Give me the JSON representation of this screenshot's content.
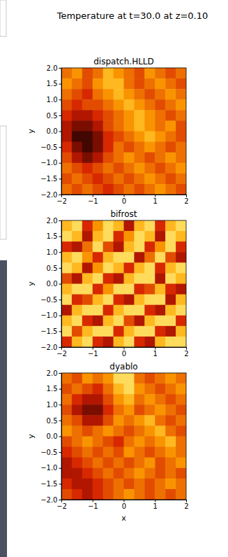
{
  "suptitle": "Temperature at t=30.0 at z=0.10",
  "chart_data": [
    {
      "type": "heatmap",
      "title": "dispatch.HLLD",
      "ylabel": "y",
      "xlim": [
        -2,
        2
      ],
      "ylim": [
        -2,
        2
      ],
      "xticks": [
        {
          "value": -2,
          "label": "−2"
        },
        {
          "value": -1,
          "label": "−1"
        },
        0,
        1,
        2
      ],
      "yticks": [
        {
          "value": -2,
          "label": "−2.0"
        },
        {
          "value": -1.5,
          "label": "−1.5"
        },
        {
          "value": -1,
          "label": "−1.0"
        },
        {
          "value": -0.5,
          "label": "−0.5"
        },
        {
          "value": 0,
          "label": "0.0"
        },
        {
          "value": 0.5,
          "label": "0.5"
        },
        {
          "value": 1,
          "label": "1.0"
        },
        {
          "value": 1.5,
          "label": "1.5"
        },
        {
          "value": 2,
          "label": "2.0"
        }
      ],
      "zlim": [
        0,
        1
      ],
      "cells": [
        [
          0.6,
          0.7,
          0.5,
          0.6,
          0.8,
          0.7,
          0.6,
          0.5,
          0.7,
          0.6,
          0.5,
          0.6
        ],
        [
          0.7,
          0.6,
          0.5,
          0.7,
          0.8,
          0.8,
          0.6,
          0.5,
          0.6,
          0.7,
          0.6,
          0.5
        ],
        [
          0.6,
          0.5,
          0.4,
          0.6,
          0.7,
          0.8,
          0.7,
          0.6,
          0.5,
          0.6,
          0.7,
          0.6
        ],
        [
          0.5,
          0.4,
          0.5,
          0.5,
          0.6,
          0.7,
          0.8,
          0.7,
          0.6,
          0.5,
          0.6,
          0.7
        ],
        [
          0.4,
          0.3,
          0.3,
          0.4,
          0.5,
          0.6,
          0.7,
          0.8,
          0.7,
          0.6,
          0.5,
          0.6
        ],
        [
          0.3,
          0.2,
          0.2,
          0.3,
          0.5,
          0.6,
          0.7,
          0.8,
          0.7,
          0.6,
          0.7,
          0.5
        ],
        [
          0.3,
          0.1,
          0.1,
          0.2,
          0.4,
          0.5,
          0.6,
          0.7,
          0.8,
          0.7,
          0.6,
          0.5
        ],
        [
          0.4,
          0.2,
          0.1,
          0.2,
          0.4,
          0.6,
          0.5,
          0.6,
          0.7,
          0.6,
          0.5,
          0.6
        ],
        [
          0.5,
          0.3,
          0.2,
          0.3,
          0.5,
          0.6,
          0.7,
          0.6,
          0.5,
          0.6,
          0.7,
          0.6
        ],
        [
          0.6,
          0.5,
          0.4,
          0.5,
          0.6,
          0.5,
          0.6,
          0.7,
          0.6,
          0.5,
          0.6,
          0.7
        ],
        [
          0.5,
          0.6,
          0.5,
          0.4,
          0.5,
          0.6,
          0.5,
          0.6,
          0.7,
          0.6,
          0.5,
          0.6
        ],
        [
          0.6,
          0.5,
          0.6,
          0.5,
          0.4,
          0.5,
          0.6,
          0.5,
          0.6,
          0.7,
          0.6,
          0.5
        ]
      ]
    },
    {
      "type": "heatmap",
      "title": "bifrost",
      "ylabel": "y",
      "xlim": [
        -2,
        2
      ],
      "ylim": [
        -2,
        2
      ],
      "xticks": [
        {
          "value": -2,
          "label": "−2"
        },
        {
          "value": -1,
          "label": "−1"
        },
        0,
        1,
        2
      ],
      "yticks": [
        {
          "value": -2,
          "label": "−2.0"
        },
        {
          "value": -1.5,
          "label": "−1.5"
        },
        {
          "value": -1,
          "label": "−1.0"
        },
        {
          "value": -0.5,
          "label": "−0.5"
        },
        {
          "value": 0,
          "label": "0.0"
        },
        {
          "value": 0.5,
          "label": "0.5"
        },
        {
          "value": 1,
          "label": "1.0"
        },
        {
          "value": 1.5,
          "label": "1.5"
        },
        {
          "value": 2,
          "label": "2.0"
        }
      ],
      "zlim": [
        0,
        1
      ],
      "cells": [
        [
          0.8,
          0.9,
          0.4,
          0.7,
          0.9,
          0.8,
          0.3,
          0.8,
          0.9,
          0.4,
          0.8,
          0.9
        ],
        [
          0.9,
          0.8,
          0.3,
          0.8,
          0.9,
          0.4,
          0.7,
          0.9,
          0.8,
          0.3,
          0.9,
          0.8
        ],
        [
          0.4,
          0.3,
          0.6,
          0.9,
          0.5,
          0.3,
          0.8,
          0.9,
          0.4,
          0.7,
          0.9,
          0.4
        ],
        [
          0.8,
          0.9,
          0.7,
          0.4,
          0.8,
          0.9,
          0.9,
          0.3,
          0.6,
          0.9,
          0.5,
          0.3
        ],
        [
          0.9,
          0.8,
          0.3,
          0.7,
          0.9,
          0.8,
          0.4,
          0.8,
          0.9,
          0.4,
          0.8,
          0.9
        ],
        [
          0.5,
          0.3,
          0.8,
          0.9,
          0.4,
          0.3,
          0.8,
          0.9,
          0.9,
          0.3,
          0.9,
          0.8
        ],
        [
          0.8,
          0.9,
          0.9,
          0.4,
          0.7,
          0.9,
          0.9,
          0.4,
          0.5,
          0.8,
          0.4,
          0.3
        ],
        [
          0.9,
          0.4,
          0.5,
          0.8,
          0.9,
          0.4,
          0.3,
          0.8,
          0.9,
          0.9,
          0.3,
          0.8
        ],
        [
          0.3,
          0.8,
          0.9,
          0.9,
          0.4,
          0.8,
          0.9,
          0.9,
          0.4,
          0.3,
          0.8,
          0.9
        ],
        [
          0.8,
          0.9,
          0.4,
          0.3,
          0.8,
          0.9,
          0.5,
          0.3,
          0.8,
          0.9,
          0.9,
          0.4
        ],
        [
          0.9,
          0.5,
          0.8,
          0.9,
          0.9,
          0.4,
          0.8,
          0.9,
          0.9,
          0.4,
          0.3,
          0.8
        ],
        [
          0.4,
          0.8,
          0.9,
          0.4,
          0.3,
          0.8,
          0.9,
          0.4,
          0.3,
          0.8,
          0.9,
          0.9
        ]
      ]
    },
    {
      "type": "heatmap",
      "title": "dyablo",
      "xlabel": "x",
      "ylabel": "y",
      "xlim": [
        -2,
        2
      ],
      "ylim": [
        -2,
        2
      ],
      "xticks": [
        {
          "value": -2,
          "label": "−2"
        },
        {
          "value": -1,
          "label": "−1"
        },
        0,
        1,
        2
      ],
      "yticks": [
        {
          "value": -2,
          "label": "−2.0"
        },
        {
          "value": -1.5,
          "label": "−1.5"
        },
        {
          "value": -1,
          "label": "−1.0"
        },
        {
          "value": -0.5,
          "label": "−0.5"
        },
        {
          "value": 0,
          "label": "0.0"
        },
        {
          "value": 0.5,
          "label": "0.5"
        },
        {
          "value": 1,
          "label": "1.0"
        },
        {
          "value": 1.5,
          "label": "1.5"
        },
        {
          "value": 2,
          "label": "2.0"
        }
      ],
      "zlim": [
        0,
        1
      ],
      "cells": [
        [
          0.6,
          0.5,
          0.7,
          0.6,
          0.7,
          0.9,
          0.9,
          0.6,
          0.5,
          0.6,
          0.7,
          0.6
        ],
        [
          0.5,
          0.6,
          0.5,
          0.4,
          0.6,
          0.8,
          0.9,
          0.7,
          0.6,
          0.5,
          0.6,
          0.7
        ],
        [
          0.6,
          0.4,
          0.3,
          0.3,
          0.5,
          0.7,
          0.8,
          0.6,
          0.7,
          0.6,
          0.5,
          0.6
        ],
        [
          0.5,
          0.3,
          0.2,
          0.2,
          0.4,
          0.6,
          0.7,
          0.5,
          0.6,
          0.7,
          0.6,
          0.5
        ],
        [
          0.6,
          0.5,
          0.3,
          0.3,
          0.5,
          0.7,
          0.6,
          0.7,
          0.8,
          0.6,
          0.5,
          0.6
        ],
        [
          0.7,
          0.6,
          0.5,
          0.6,
          0.7,
          0.6,
          0.5,
          0.6,
          0.7,
          0.8,
          0.6,
          0.5
        ],
        [
          0.5,
          0.6,
          0.7,
          0.6,
          0.5,
          0.4,
          0.6,
          0.7,
          0.6,
          0.7,
          0.8,
          0.6
        ],
        [
          0.4,
          0.5,
          0.6,
          0.5,
          0.6,
          0.5,
          0.7,
          0.6,
          0.5,
          0.6,
          0.7,
          0.6
        ],
        [
          0.3,
          0.4,
          0.5,
          0.6,
          0.5,
          0.6,
          0.5,
          0.6,
          0.7,
          0.5,
          0.6,
          0.7
        ],
        [
          0.3,
          0.3,
          0.4,
          0.5,
          0.6,
          0.5,
          0.6,
          0.7,
          0.6,
          0.5,
          0.6,
          0.5
        ],
        [
          0.4,
          0.3,
          0.3,
          0.4,
          0.5,
          0.6,
          0.5,
          0.6,
          0.5,
          0.6,
          0.7,
          0.6
        ],
        [
          0.5,
          0.4,
          0.3,
          0.4,
          0.5,
          0.6,
          0.7,
          0.6,
          0.5,
          0.6,
          0.5,
          0.6
        ]
      ]
    }
  ]
}
